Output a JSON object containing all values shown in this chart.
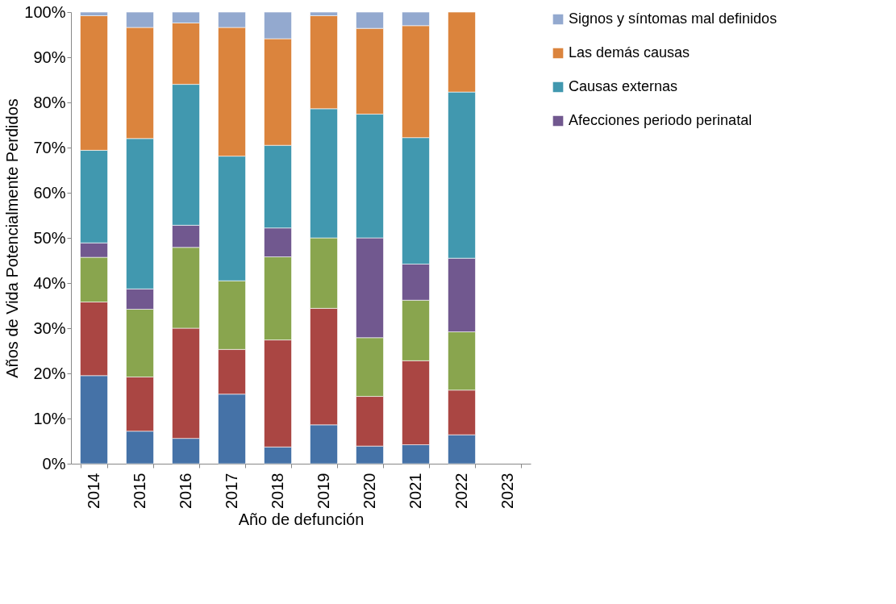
{
  "chart_data": {
    "type": "bar",
    "stacked": true,
    "xlabel": "Año de defunción",
    "ylabel": "Años de Vida Potencialmente Perdidos",
    "categories": [
      "2014",
      "2015",
      "2016",
      "2017",
      "2018",
      "2019",
      "2020",
      "2021",
      "2022",
      "2023"
    ],
    "series": [
      {
        "color": "#4572a7",
        "values": [
          19.5,
          7.2,
          5.6,
          15.4,
          3.7,
          8.6,
          3.9,
          4.2,
          6.4,
          null
        ]
      },
      {
        "color": "#aa4643",
        "values": [
          16.3,
          12.0,
          24.4,
          9.9,
          23.7,
          25.8,
          11.0,
          18.6,
          9.9,
          null
        ]
      },
      {
        "color": "#89a54e",
        "values": [
          9.9,
          15.0,
          17.9,
          15.2,
          18.4,
          15.6,
          13.0,
          13.4,
          12.9,
          null
        ]
      },
      {
        "name": "Afecciones periodo perinatal",
        "color": "#71588f",
        "values": [
          3.2,
          4.5,
          4.9,
          null,
          6.4,
          null,
          22.1,
          8.0,
          16.3,
          null
        ]
      },
      {
        "name": "Causas externas",
        "color": "#4198af",
        "values": [
          20.5,
          33.3,
          31.2,
          27.6,
          18.3,
          28.6,
          27.4,
          28.0,
          36.8,
          null
        ]
      },
      {
        "name": "Las demás causas",
        "color": "#db843d",
        "values": [
          29.8,
          24.6,
          13.6,
          28.5,
          23.6,
          20.6,
          19.0,
          24.8,
          17.7,
          null
        ]
      },
      {
        "name": "Signos y síntomas mal definidos",
        "color": "#93a9cf",
        "values": [
          0.8,
          3.4,
          2.4,
          3.4,
          5.9,
          0.8,
          3.6,
          3.0,
          null,
          null
        ]
      }
    ],
    "ylim": [
      0,
      100
    ],
    "yticks": [
      {
        "value": 0,
        "label": "0%"
      },
      {
        "value": 10,
        "label": "10%"
      },
      {
        "value": 20,
        "label": "20%"
      },
      {
        "value": 30,
        "label": "30%"
      },
      {
        "value": 40,
        "label": "40%"
      },
      {
        "value": 50,
        "label": "50%"
      },
      {
        "value": 60,
        "label": "60%"
      },
      {
        "value": 70,
        "label": "70%"
      },
      {
        "value": 80,
        "label": "80%"
      },
      {
        "value": 90,
        "label": "90%"
      },
      {
        "value": 100,
        "label": "100%"
      }
    ],
    "grid": false,
    "legend": "right"
  }
}
